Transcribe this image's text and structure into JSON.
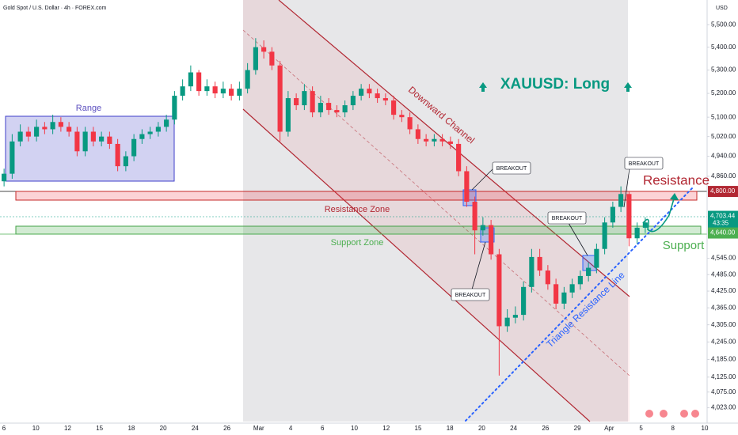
{
  "header": {
    "title": "Gold Spot / U.S. Dollar · 4h · FOREX.com",
    "currency": "USD"
  },
  "chart_data": {
    "type": "candlestick",
    "open": [
      4840,
      4870,
      5000,
      5040,
      5020,
      5060,
      5050,
      5080,
      5060,
      5040,
      4960,
      5040,
      5000,
      5020,
      4990,
      4900,
      4940,
      5010,
      5030,
      5040,
      5060,
      5090,
      5190,
      5230,
      5290,
      5210,
      5230,
      5200,
      5220,
      5190,
      5220,
      5300,
      5400,
      5380,
      5320,
      5040,
      5180,
      5150,
      5210,
      5120,
      5160,
      5130,
      5120,
      5150,
      5190,
      5220,
      5200,
      5180,
      5170,
      5110,
      5100,
      5050,
      5010,
      5000,
      5010,
      5000,
      4990,
      4880,
      4760,
      4650,
      4670,
      4560,
      4300,
      4330,
      4340,
      4440,
      4550,
      4500,
      4450,
      4380,
      4420,
      4450,
      4480,
      4510,
      4580,
      4680,
      4740,
      4790,
      4620,
      4660
    ],
    "high": [
      4890,
      5030,
      5070,
      5060,
      5090,
      5080,
      5110,
      5100,
      5080,
      5060,
      5060,
      5060,
      5040,
      5040,
      5010,
      4960,
      5030,
      5050,
      5060,
      5080,
      5110,
      5210,
      5260,
      5320,
      5300,
      5260,
      5250,
      5250,
      5240,
      5250,
      5330,
      5440,
      5430,
      5400,
      5340,
      5210,
      5200,
      5240,
      5230,
      5190,
      5180,
      5150,
      5170,
      5210,
      5240,
      5240,
      5220,
      5200,
      5190,
      5130,
      5120,
      5070,
      5030,
      5030,
      5030,
      5020,
      5010,
      4900,
      4780,
      4700,
      4690,
      4580,
      4360,
      4370,
      4460,
      4580,
      4580,
      4520,
      4470,
      4440,
      4470,
      4500,
      4530,
      4600,
      4700,
      4760,
      4820,
      4800,
      4680,
      4700
    ],
    "low": [
      4820,
      4850,
      4980,
      5000,
      5000,
      5030,
      5030,
      5040,
      5020,
      4940,
      4940,
      4980,
      4980,
      4970,
      4880,
      4880,
      4920,
      4990,
      5010,
      5020,
      5040,
      5070,
      5170,
      5210,
      5190,
      5190,
      5180,
      5180,
      5170,
      5170,
      5200,
      5280,
      5350,
      5300,
      5000,
      5020,
      5130,
      5130,
      5100,
      5100,
      5110,
      5100,
      5100,
      5130,
      5170,
      5180,
      5160,
      5150,
      5090,
      5080,
      5030,
      4990,
      4980,
      4980,
      4980,
      4970,
      4860,
      4740,
      4560,
      4630,
      4540,
      4130,
      4280,
      4310,
      4320,
      4420,
      4480,
      4430,
      4360,
      4360,
      4400,
      4430,
      4460,
      4490,
      4560,
      4660,
      4720,
      4590,
      4600,
      4640
    ],
    "close": [
      4870,
      5000,
      5040,
      5020,
      5060,
      5050,
      5080,
      5060,
      5040,
      4960,
      5040,
      5000,
      5020,
      4990,
      4900,
      4940,
      5010,
      5030,
      5040,
      5060,
      5090,
      5190,
      5230,
      5290,
      5210,
      5230,
      5200,
      5220,
      5190,
      5220,
      5300,
      5400,
      5380,
      5320,
      5040,
      5180,
      5150,
      5210,
      5120,
      5160,
      5130,
      5120,
      5150,
      5190,
      5220,
      5200,
      5180,
      5170,
      5110,
      5100,
      5050,
      5010,
      5000,
      5010,
      5000,
      4990,
      4880,
      4760,
      4650,
      4670,
      4560,
      4300,
      4330,
      4340,
      4440,
      4550,
      4500,
      4450,
      4380,
      4420,
      4450,
      4480,
      4510,
      4580,
      4680,
      4740,
      4790,
      4620,
      4660,
      4680
    ],
    "up_color": "#089981",
    "down_color": "#f23645",
    "log_scale": true,
    "ylim": [
      3978,
      5612
    ],
    "yticks": [
      {
        "value": 5500,
        "label": "5,500.00"
      },
      {
        "value": 5400,
        "label": "5,400.00"
      },
      {
        "value": 5300,
        "label": "5,300.00"
      },
      {
        "value": 5200,
        "label": "5,200.00"
      },
      {
        "value": 5100,
        "label": "5,100.00"
      },
      {
        "value": 5020,
        "label": "5,020.00"
      },
      {
        "value": 4940,
        "label": "4,940.00"
      },
      {
        "value": 4860,
        "label": "4,860.00"
      },
      {
        "value": 4545,
        "label": "4,545.00"
      },
      {
        "value": 4485,
        "label": "4,485.00"
      },
      {
        "value": 4425,
        "label": "4,425.00"
      },
      {
        "value": 4365,
        "label": "4,365.00"
      },
      {
        "value": 4305,
        "label": "4,305.00"
      },
      {
        "value": 4245,
        "label": "4,245.00"
      },
      {
        "value": 4185,
        "label": "4,185.00"
      },
      {
        "value": 4125,
        "label": "4,125.00"
      },
      {
        "value": 4075,
        "label": "4,075.00"
      },
      {
        "value": 4023,
        "label": "4,023.00"
      }
    ],
    "price_labels": [
      {
        "value": 4800,
        "label": "4,800.00",
        "color": "#b22833"
      },
      {
        "value": 4703.44,
        "label": "4,703.44",
        "color": "#089981"
      },
      {
        "value": 4640,
        "label": "4,640.00",
        "color": "#4caf50"
      }
    ],
    "countdown": "43:35",
    "x_labels": [
      "6",
      "10",
      "12",
      "15",
      "18",
      "20",
      "24",
      "26",
      "Mar",
      "4",
      "6",
      "10",
      "12",
      "15",
      "18",
      "20",
      "24",
      "26",
      "29",
      "Apr",
      "5",
      "8",
      "10"
    ],
    "annotations": {
      "range": "Range",
      "downward_channel": "Downward Channel",
      "headline": "XAUUSD: Long",
      "resistance_zone": "Resistance Zone",
      "support_zone": "Support Zone",
      "resistance": "Resistance",
      "support": "Support",
      "triangle_line": "Triangle Resistance Line",
      "breakout": [
        "BREAKOUT",
        "BREAKOUT",
        "BREAKOUT",
        "BREAKOUT"
      ]
    }
  }
}
